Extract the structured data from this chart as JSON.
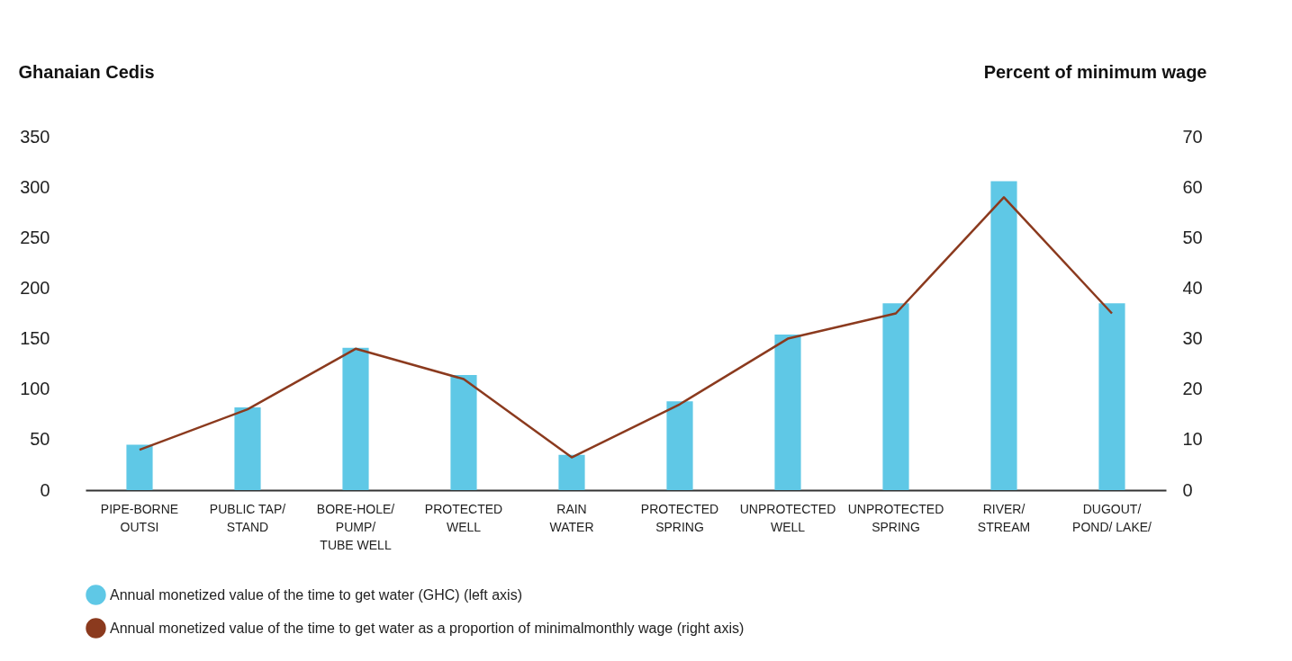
{
  "chart_data": {
    "type": "bar",
    "ylabel": "Ghanaian Cedis",
    "y2label": "Percent of minimum wage",
    "categories": [
      "PIPE-BORNE\nOUTSI",
      "PUBLIC TAP/\nSTAND",
      "BORE-HOLE/\nPUMP/\nTUBE WELL",
      "PROTECTED\nWELL",
      "RAIN\nWATER",
      "PROTECTED\nSPRING",
      "UNPROTECTED\nWELL",
      "UNPROTECTED\nSPRING",
      "RIVER/\nSTREAM",
      "DUGOUT/\nPOND/ LAKE/"
    ],
    "series": [
      {
        "name": "Annual monetized value of the time to get water (GHC) (left axis)",
        "color": "#5fc8e6",
        "values": [
          45,
          82,
          141,
          114,
          35,
          88,
          154,
          185,
          306,
          185
        ]
      },
      {
        "name": "Annual monetized value of the time to get water as a proportion of minimalmonthly wage (right axis)",
        "type": "line",
        "axis": "y2",
        "color": "#8b3a1e",
        "values": [
          8,
          16,
          28,
          22,
          6.5,
          17,
          30,
          35,
          58,
          35
        ]
      }
    ],
    "ylim": [
      0,
      350
    ],
    "yticks": [
      0,
      50,
      100,
      150,
      200,
      250,
      300,
      350
    ],
    "y2lim": [
      0,
      70
    ],
    "y2ticks": [
      0,
      10,
      20,
      30,
      40,
      50,
      60,
      70
    ],
    "grid": false,
    "legend": "bottom",
    "marker": "none"
  }
}
